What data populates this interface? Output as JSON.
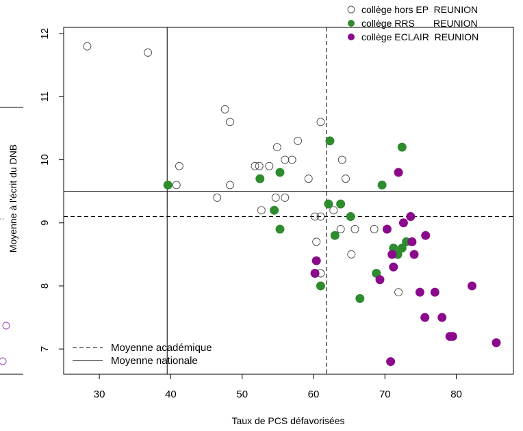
{
  "chart_data": {
    "type": "scatter",
    "xlabel": "Taux de PCS défavorisées",
    "ylabel": "Moyenne à l'écrit du DNB",
    "xlim": [
      25,
      88
    ],
    "ylim": [
      6.6,
      12.1
    ],
    "xticks": [
      30,
      40,
      50,
      60,
      70,
      80
    ],
    "yticks": [
      7,
      8,
      9,
      10,
      11,
      12
    ],
    "grid": false,
    "legend_position": "top-right",
    "series": [
      {
        "name": "collège hors EP  REUNION",
        "marker": "open-circle",
        "color": "#555555",
        "points": [
          [
            28.3,
            11.8
          ],
          [
            36.8,
            11.7
          ],
          [
            47.6,
            10.8
          ],
          [
            48.3,
            10.6
          ],
          [
            61.0,
            10.6
          ],
          [
            41.2,
            9.9
          ],
          [
            51.8,
            9.9
          ],
          [
            52.4,
            9.9
          ],
          [
            53.8,
            9.9
          ],
          [
            54.9,
            10.2
          ],
          [
            56.0,
            10.0
          ],
          [
            57.0,
            10.0
          ],
          [
            57.8,
            10.3
          ],
          [
            64.0,
            10.0
          ],
          [
            59.3,
            9.7
          ],
          [
            64.5,
            9.7
          ],
          [
            40.8,
            9.6
          ],
          [
            48.3,
            9.6
          ],
          [
            46.5,
            9.4
          ],
          [
            54.7,
            9.4
          ],
          [
            56.0,
            9.4
          ],
          [
            52.7,
            9.2
          ],
          [
            62.8,
            9.2
          ],
          [
            60.2,
            9.1
          ],
          [
            61.0,
            9.1
          ],
          [
            63.8,
            8.9
          ],
          [
            65.8,
            8.9
          ],
          [
            68.5,
            8.9
          ],
          [
            60.4,
            8.7
          ],
          [
            65.3,
            8.5
          ],
          [
            61.0,
            8.2
          ],
          [
            71.9,
            7.9
          ]
        ]
      },
      {
        "name": "collège RRS       REUNION",
        "marker": "filled-circle",
        "color": "#2e8b2e",
        "points": [
          [
            39.6,
            9.6
          ],
          [
            52.5,
            9.7
          ],
          [
            55.3,
            9.8
          ],
          [
            62.3,
            10.3
          ],
          [
            72.4,
            10.2
          ],
          [
            69.6,
            9.6
          ],
          [
            62.1,
            9.3
          ],
          [
            63.8,
            9.3
          ],
          [
            54.5,
            9.2
          ],
          [
            65.2,
            9.1
          ],
          [
            55.3,
            8.9
          ],
          [
            63.0,
            8.8
          ],
          [
            71.2,
            8.6
          ],
          [
            72.4,
            8.6
          ],
          [
            73.0,
            8.7
          ],
          [
            71.8,
            8.5
          ],
          [
            68.8,
            8.2
          ],
          [
            61.0,
            8.0
          ],
          [
            66.5,
            7.8
          ]
        ]
      },
      {
        "name": "collège ECLAIR  REUNION",
        "marker": "filled-circle",
        "color": "#8b0a8b",
        "points": [
          [
            71.9,
            9.8
          ],
          [
            73.6,
            9.1
          ],
          [
            72.6,
            9.0
          ],
          [
            70.3,
            8.9
          ],
          [
            73.8,
            8.7
          ],
          [
            75.7,
            8.8
          ],
          [
            71.0,
            8.5
          ],
          [
            74.1,
            8.5
          ],
          [
            60.4,
            8.4
          ],
          [
            71.2,
            8.3
          ],
          [
            60.2,
            8.2
          ],
          [
            69.3,
            8.1
          ],
          [
            82.2,
            8.0
          ],
          [
            74.9,
            7.9
          ],
          [
            77.0,
            7.9
          ],
          [
            75.6,
            7.5
          ],
          [
            78.0,
            7.5
          ],
          [
            79.1,
            7.2
          ],
          [
            79.5,
            7.2
          ],
          [
            85.6,
            7.1
          ],
          [
            70.8,
            6.8
          ]
        ]
      }
    ],
    "reference_lines": [
      {
        "name": "Moyenne académique",
        "style": "dashed",
        "x": 61.8,
        "y": 9.1
      },
      {
        "name": "Moyenne nationale",
        "style": "solid",
        "x": 39.5,
        "y": 9.5
      }
    ]
  }
}
